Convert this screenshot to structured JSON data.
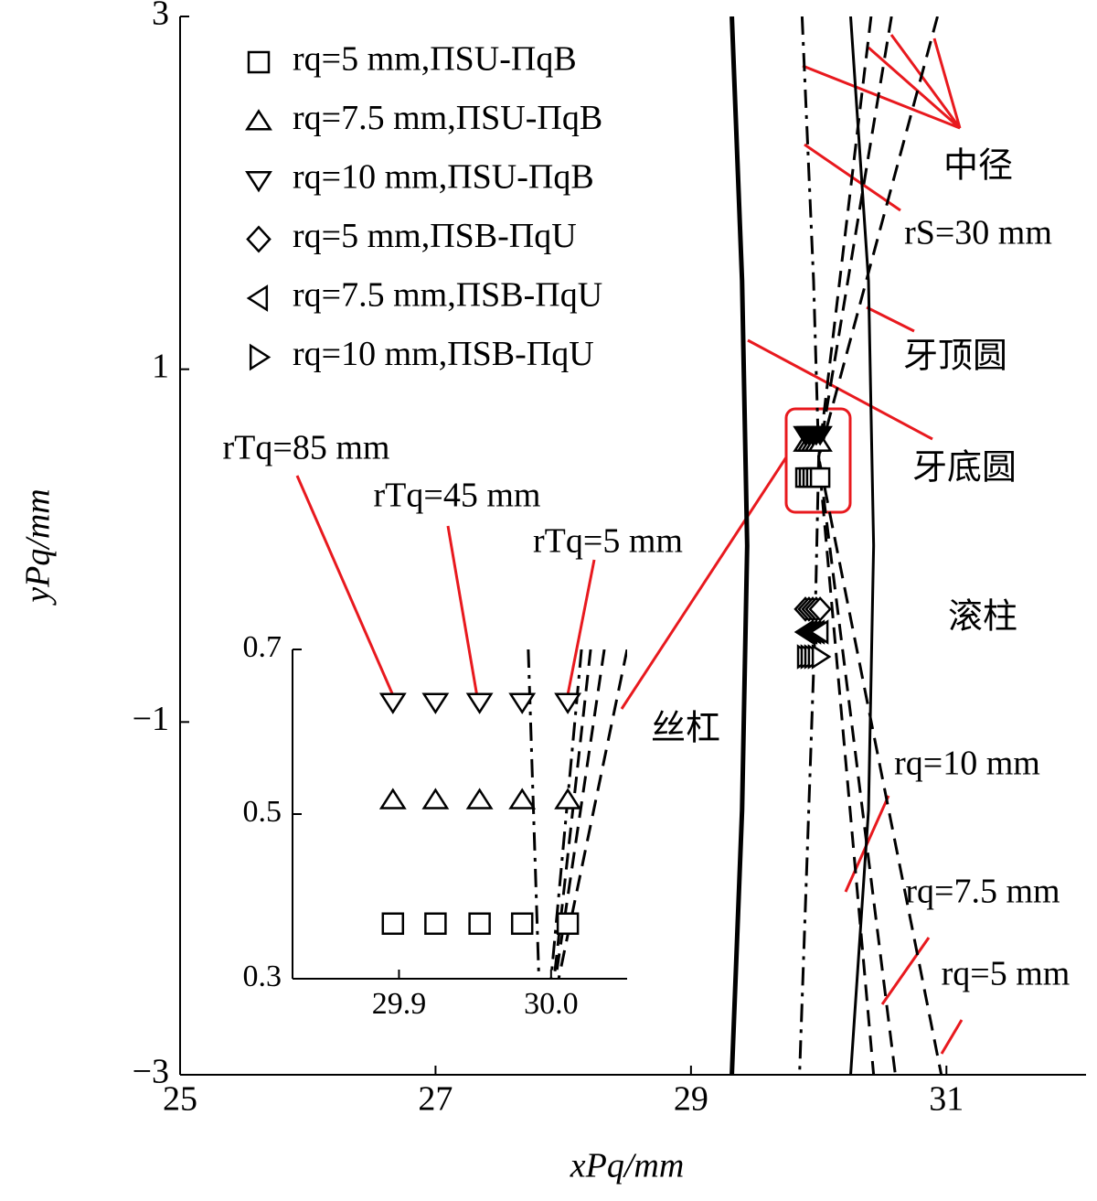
{
  "chart_data": [
    {
      "type": "line",
      "x_label": "xPq/mm",
      "y_label": "yPq/mm",
      "xlim": [
        25,
        32
      ],
      "ylim": [
        -3,
        3
      ],
      "xticks": [
        25,
        27,
        29,
        31
      ],
      "yticks": [
        {
          "value": -3,
          "label": "−3"
        },
        {
          "value": -1,
          "label": "−1"
        },
        1,
        3
      ],
      "series": [
        {
          "style": "solid",
          "color": "#000000",
          "x": [
            29.32,
            29.4,
            29.44,
            29.4,
            29.32
          ],
          "y": [
            3,
            1.5,
            0,
            -1.5,
            -3
          ]
        },
        {
          "style": "solid-thin",
          "color": "#000000",
          "x": [
            30.25,
            30.39,
            30.43,
            30.39,
            30.25
          ],
          "y": [
            3,
            1.5,
            0,
            -1.5,
            -3
          ]
        },
        {
          "style": "dashdot",
          "color": "#000000",
          "x": [
            29.87,
            29.96,
            30.0,
            29.97,
            29.85
          ],
          "y": [
            3,
            1.5,
            0.5,
            -0.5,
            -3
          ]
        },
        {
          "style": "dashed",
          "color": "#000000",
          "x": [
            30.41,
            30.0,
            30.43
          ],
          "y": [
            3,
            0.5,
            -3
          ]
        },
        {
          "style": "dashed",
          "color": "#000000",
          "x": [
            30.57,
            30.0,
            30.6
          ],
          "y": [
            3,
            0.5,
            -3
          ]
        },
        {
          "style": "dashed",
          "color": "#000000",
          "x": [
            30.93,
            30.0,
            30.96
          ],
          "y": [
            3,
            0.5,
            -3
          ]
        },
        {
          "name": "rq=5 mm,ΠSU-ΠqB",
          "marker": "square",
          "color": "#000000",
          "x": [
            29.896,
            29.924,
            29.953,
            29.981,
            30.011
          ],
          "y": [
            0.386,
            0.386,
            0.386,
            0.386,
            0.386
          ]
        },
        {
          "name": "rq=7.5 mm,ΠSU-ΠqB",
          "marker": "triangle-up",
          "color": "#000000",
          "x": [
            29.896,
            29.924,
            29.953,
            29.981,
            30.011
          ],
          "y": [
            0.58,
            0.58,
            0.58,
            0.58,
            0.58
          ]
        },
        {
          "name": "rq=10 mm,ΠSU-ΠqB",
          "marker": "triangle-down",
          "color": "#000000",
          "x": [
            29.896,
            29.924,
            29.953,
            29.981,
            30.011
          ],
          "y": [
            0.63,
            0.63,
            0.63,
            0.63,
            0.63
          ]
        },
        {
          "name": "rq=5 mm,ΠSB-ΠqU",
          "marker": "diamond",
          "color": "#000000",
          "x": [
            29.896,
            29.924,
            29.953,
            29.981,
            30.011
          ],
          "y": [
            -0.36,
            -0.36,
            -0.36,
            -0.36,
            -0.36
          ]
        },
        {
          "name": "rq=7.5 mm,ΠSB-ΠqU",
          "marker": "triangle-left",
          "color": "#000000",
          "x": [
            29.896,
            29.924,
            29.953,
            29.981,
            30.011
          ],
          "y": [
            -0.49,
            -0.49,
            -0.49,
            -0.49,
            -0.49
          ]
        },
        {
          "name": "rq=10 mm,ΠSB-ΠqU",
          "marker": "triangle-right",
          "color": "#000000",
          "x": [
            29.896,
            29.924,
            29.953,
            29.981,
            30.011
          ],
          "y": [
            -0.63,
            -0.63,
            -0.63,
            -0.63,
            -0.63
          ]
        }
      ],
      "annotations": [
        "中径",
        "rS=30 mm",
        "牙顶圆",
        "牙底圆",
        "滚柱",
        "丝杠",
        "rq=10 mm",
        "rq=7.5 mm",
        "rq=5 mm",
        "rTq=85 mm",
        "rTq=45 mm",
        "rTq=5 mm"
      ]
    },
    {
      "type": "line",
      "xlim": [
        29.83,
        30.05
      ],
      "ylim": [
        0.3,
        0.7
      ],
      "xticks": [
        29.9,
        {
          "value": 30.0,
          "label": "30.0"
        }
      ],
      "yticks": [
        0.3,
        0.5,
        0.7
      ],
      "series": [
        {
          "style": "dashdot",
          "color": "#000000",
          "x": [
            29.985,
            29.992
          ],
          "y": [
            0.7,
            0.3
          ]
        },
        {
          "style": "dashdot",
          "color": "#000000",
          "x": [
            30.02,
            30.0
          ],
          "y": [
            0.7,
            0.3
          ]
        },
        {
          "style": "dashed",
          "color": "#000000",
          "x": [
            30.026,
            30.002
          ],
          "y": [
            0.7,
            0.3
          ]
        },
        {
          "style": "dashed",
          "color": "#000000",
          "x": [
            30.035,
            30.003
          ],
          "y": [
            0.7,
            0.3
          ]
        },
        {
          "style": "dashed",
          "color": "#000000",
          "x": [
            30.05,
            30.005
          ],
          "y": [
            0.7,
            0.3
          ]
        },
        {
          "marker": "triangle-down",
          "color": "#000000",
          "x": [
            29.896,
            29.924,
            29.953,
            29.981,
            30.011
          ],
          "y": [
            0.636,
            0.636,
            0.636,
            0.636,
            0.636
          ]
        },
        {
          "marker": "triangle-up",
          "color": "#000000",
          "x": [
            29.896,
            29.924,
            29.953,
            29.981,
            30.011
          ],
          "y": [
            0.517,
            0.517,
            0.517,
            0.517,
            0.517
          ]
        },
        {
          "marker": "square",
          "color": "#000000",
          "x": [
            29.896,
            29.924,
            29.953,
            29.981,
            30.011
          ],
          "y": [
            0.367,
            0.367,
            0.367,
            0.367,
            0.367
          ]
        }
      ]
    }
  ]
}
